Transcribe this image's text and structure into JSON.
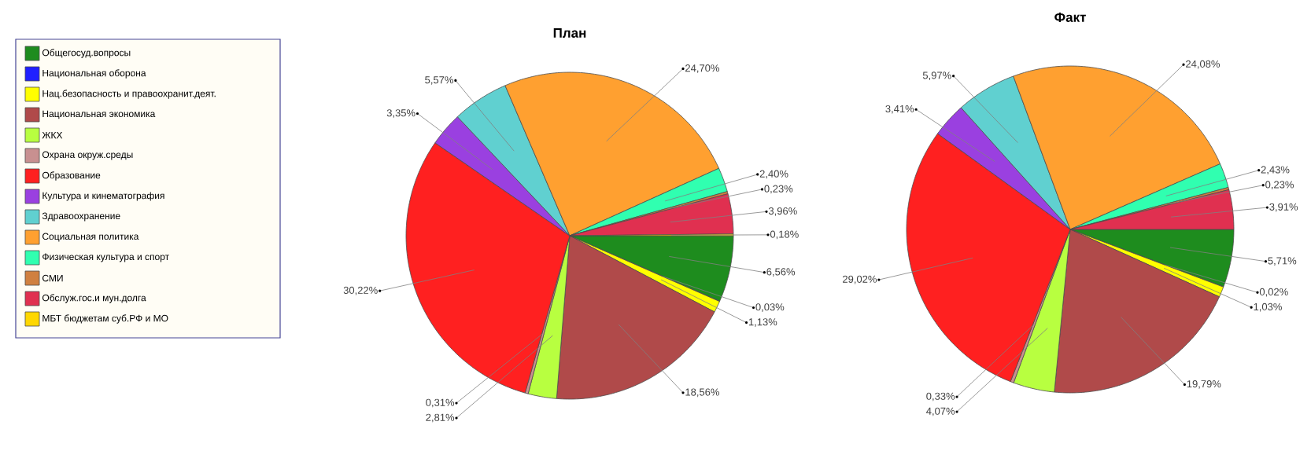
{
  "chart_data": [
    {
      "type": "pie",
      "title": "План",
      "legend": "left",
      "categories": [
        "Общегосуд.вопросы",
        "Национальная оборона",
        "Нац.безопасность и правоохранит.деят.",
        "Национальная экономика",
        "ЖКХ",
        "Охрана окруж.среды",
        "Образование",
        "Культура и кинематография",
        "Здравоохранение",
        "Социальная политика",
        "Физическая культура и спорт",
        "СМИ",
        "Обслуж.гос.и мун.долга",
        "МБТ бюджетам суб.РФ и МО"
      ],
      "values": [
        6.56,
        0.03,
        1.13,
        18.56,
        2.81,
        0.31,
        30.22,
        3.35,
        5.57,
        24.7,
        2.4,
        0.23,
        3.96,
        0.18
      ],
      "value_labels": [
        "6,56%",
        "0,03%",
        "1,13%",
        "18,56%",
        "2,81%",
        "0,31%",
        "30,22%",
        "3,35%",
        "5,57%",
        "24,70%",
        "2,40%",
        "0,23%",
        "3,96%",
        "0,18%"
      ],
      "colors": [
        "#1e8c1e",
        "#2020ff",
        "#ffff00",
        "#b04a4a",
        "#b8ff40",
        "#c89090",
        "#ff2020",
        "#9a40e0",
        "#60d0d0",
        "#ffa030",
        "#30ffb0",
        "#d08040",
        "#e03050",
        "#ffd700"
      ]
    },
    {
      "type": "pie",
      "title": "Факт",
      "categories": [
        null,
        null,
        null,
        null,
        null,
        null,
        null,
        null,
        null,
        null,
        null,
        null,
        null,
        null
      ],
      "values": [
        5.71,
        0.02,
        1.03,
        19.79,
        4.07,
        0.33,
        29.02,
        3.41,
        5.97,
        24.08,
        2.43,
        0.23,
        3.91,
        null
      ],
      "value_labels": [
        "5,71%",
        "0,02%",
        "1,03%",
        "19,79%",
        "4,07%",
        "0,33%",
        "29,02%",
        "3,41%",
        "5,97%",
        "24,08%",
        "2,43%",
        "0,23%",
        "3,91%",
        null
      ],
      "colors": [
        "#1e8c1e",
        "#2020ff",
        "#ffff00",
        "#b04a4a",
        "#b8ff40",
        "#c89090",
        "#ff2020",
        "#9a40e0",
        "#60d0d0",
        "#ffa030",
        "#30ffb0",
        "#d08040",
        "#e03050",
        "#ffd700"
      ]
    }
  ]
}
